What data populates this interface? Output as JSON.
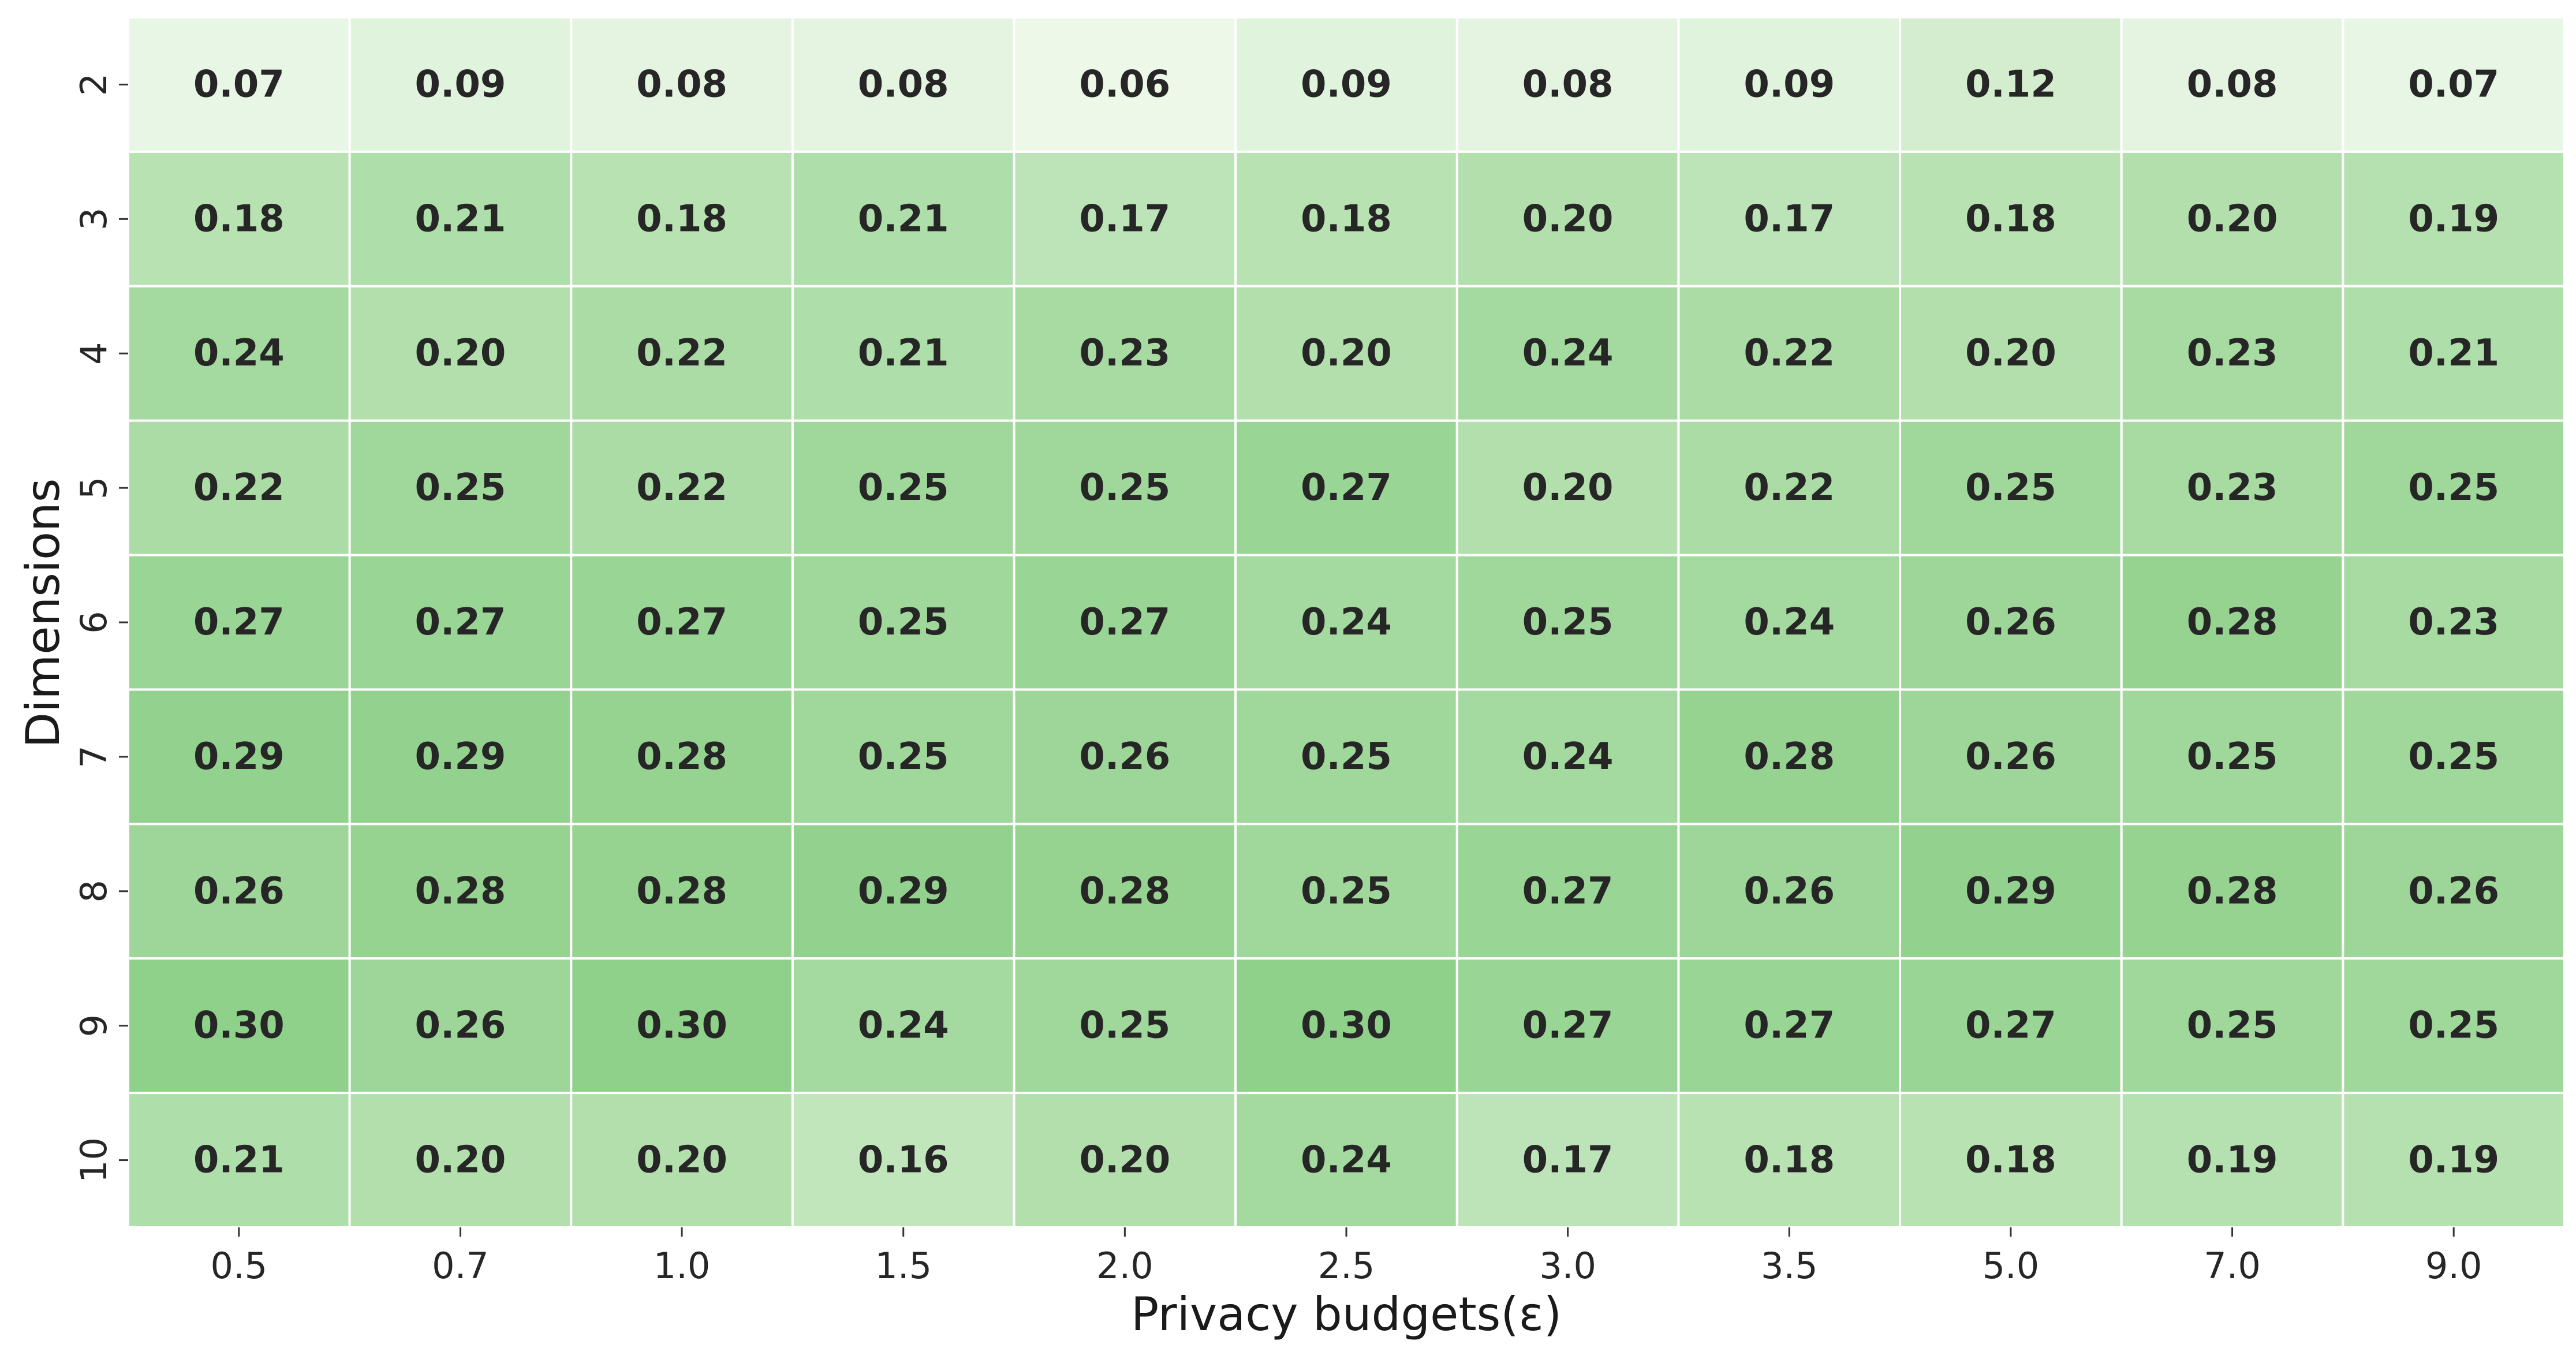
{
  "chart_data": {
    "type": "heatmap",
    "title": "",
    "xlabel": "Privacy budgets(ε)",
    "ylabel": "Dimensions",
    "x_categories": [
      "0.5",
      "0.7",
      "1.0",
      "1.5",
      "2.0",
      "2.5",
      "3.0",
      "3.5",
      "5.0",
      "7.0",
      "9.0"
    ],
    "y_categories": [
      "2",
      "3",
      "4",
      "5",
      "6",
      "7",
      "8",
      "9",
      "10"
    ],
    "values": [
      [
        0.07,
        0.09,
        0.08,
        0.08,
        0.06,
        0.09,
        0.08,
        0.09,
        0.12,
        0.08,
        0.07
      ],
      [
        0.18,
        0.21,
        0.18,
        0.21,
        0.17,
        0.18,
        0.2,
        0.17,
        0.18,
        0.2,
        0.19
      ],
      [
        0.24,
        0.2,
        0.22,
        0.21,
        0.23,
        0.2,
        0.24,
        0.22,
        0.2,
        0.23,
        0.21
      ],
      [
        0.22,
        0.25,
        0.22,
        0.25,
        0.25,
        0.27,
        0.2,
        0.22,
        0.25,
        0.23,
        0.25
      ],
      [
        0.27,
        0.27,
        0.27,
        0.25,
        0.27,
        0.24,
        0.25,
        0.24,
        0.26,
        0.28,
        0.23
      ],
      [
        0.29,
        0.29,
        0.28,
        0.25,
        0.26,
        0.25,
        0.24,
        0.28,
        0.26,
        0.25,
        0.25
      ],
      [
        0.26,
        0.28,
        0.28,
        0.29,
        0.28,
        0.25,
        0.27,
        0.26,
        0.29,
        0.28,
        0.26
      ],
      [
        0.3,
        0.26,
        0.3,
        0.24,
        0.25,
        0.3,
        0.27,
        0.27,
        0.27,
        0.25,
        0.25
      ],
      [
        0.21,
        0.2,
        0.2,
        0.16,
        0.2,
        0.24,
        0.17,
        0.18,
        0.18,
        0.19,
        0.19
      ]
    ],
    "value_format": "0.00",
    "colormap": {
      "low_color": "#f1faee",
      "mid_color": "#b9e2b3",
      "high_color": "#8bcf87",
      "vmin": 0.05,
      "vmax": 0.31
    },
    "annotations": true,
    "colorbar": false,
    "grid_color": "#ffffff"
  }
}
